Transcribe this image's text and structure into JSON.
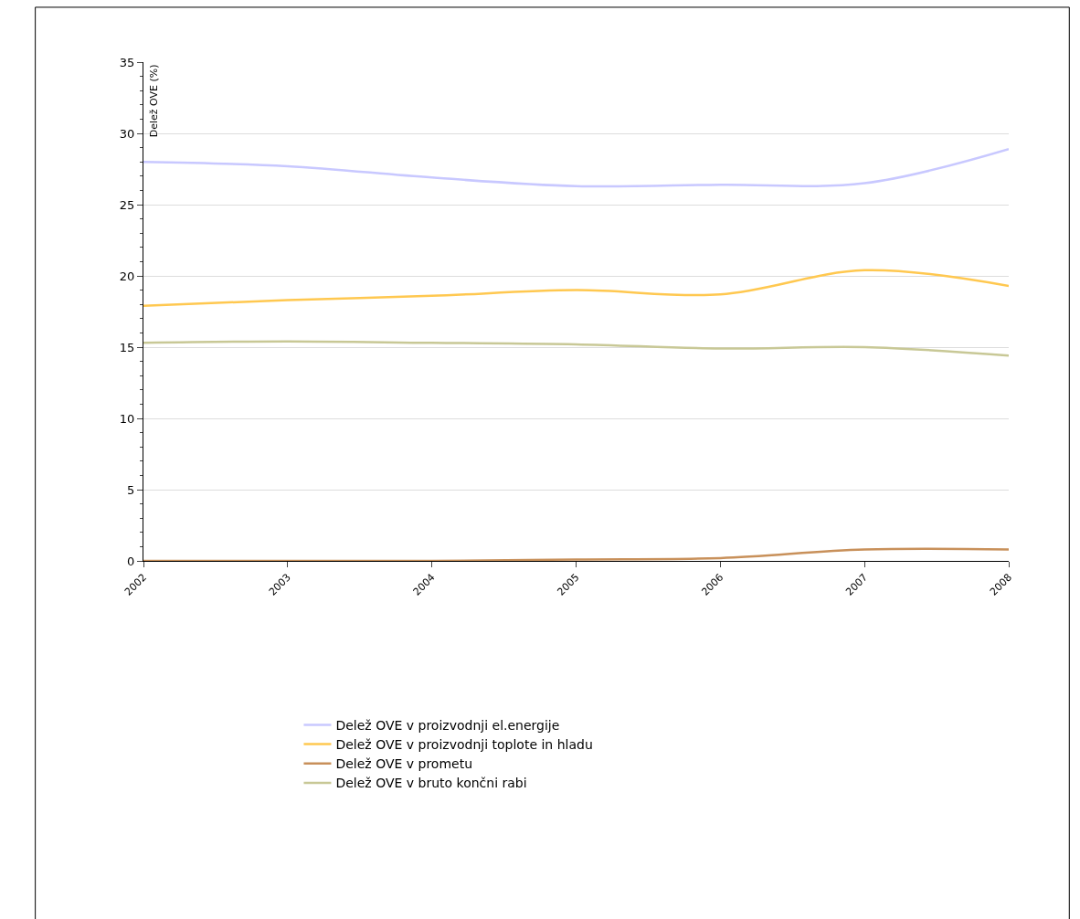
{
  "chart_data": {
    "type": "line",
    "ylabel": "Delež OVE (%)",
    "x": [
      2002,
      2003,
      2004,
      2005,
      2006,
      2007,
      2008
    ],
    "xlim": [
      2002,
      2008
    ],
    "xticks": [
      2002,
      2003,
      2004,
      2005,
      2006,
      2007,
      2008
    ],
    "ylim": [
      0,
      35
    ],
    "yticks": [
      0,
      5,
      10,
      15,
      20,
      25,
      30,
      35
    ],
    "grid": "y",
    "legend": "bottom",
    "marker": "none",
    "line_style": "solid",
    "series": [
      {
        "name": "Delež OVE v proizvodnji el.energije",
        "color": "#c8c8ff",
        "values": [
          28.0,
          27.7,
          26.9,
          26.3,
          26.4,
          26.5,
          28.9
        ]
      },
      {
        "name": "Delež OVE v proizvodnji toplote in hladu",
        "color": "#ffc850",
        "values": [
          17.9,
          18.3,
          18.6,
          19.0,
          18.7,
          20.4,
          19.3
        ]
      },
      {
        "name": "Delež OVE v prometu",
        "color": "#c8905a",
        "values": [
          0.0,
          0.0,
          0.0,
          0.1,
          0.2,
          0.8,
          0.8
        ]
      },
      {
        "name": "Delež OVE v bruto končni rabi",
        "color": "#c8c896",
        "values": [
          15.3,
          15.4,
          15.3,
          15.2,
          14.9,
          15.0,
          14.4
        ]
      }
    ]
  }
}
